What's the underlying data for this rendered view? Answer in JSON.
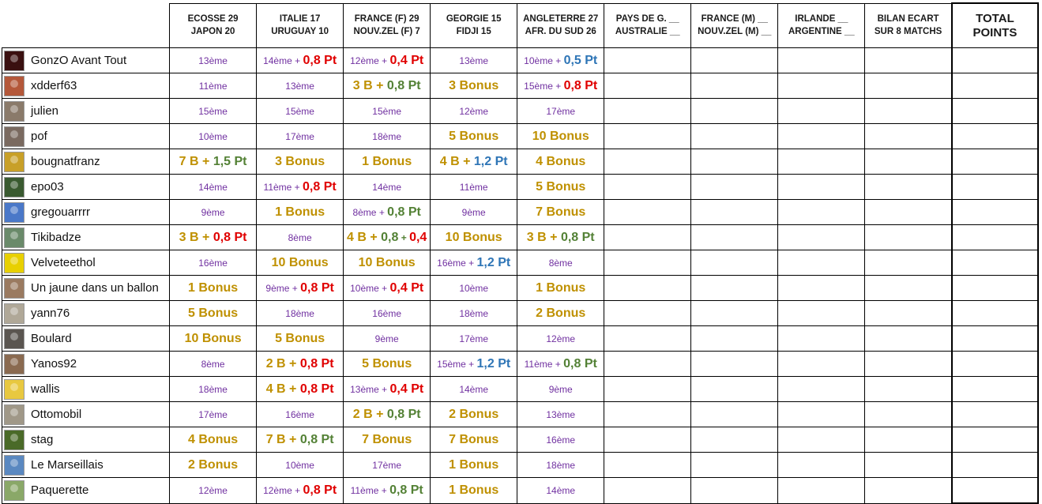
{
  "headers": [
    {
      "l1": "ECOSSE  29",
      "l2": "JAPON    20"
    },
    {
      "l1": "ITALIE      17",
      "l2": "URUGUAY 10"
    },
    {
      "l1": "FRANCE (F)  29",
      "l2": "NOUV.ZEL (F)  7"
    },
    {
      "l1": "GEORGIE  15",
      "l2": "FIDJI       15"
    },
    {
      "l1": "ANGLETERRE  27",
      "l2": "AFR. DU SUD  26"
    },
    {
      "l1": "PAYS DE G.  __",
      "l2": "AUSTRALIE  __"
    },
    {
      "l1": "FRANCE (M)    __",
      "l2": "NOUV.ZEL (M)  __"
    },
    {
      "l1": "IRLANDE    __",
      "l2": "ARGENTINE  __"
    },
    {
      "l1": "BILAN ECART",
      "l2": "SUR 8 MATCHS"
    },
    {
      "l1": "TOTAL",
      "l2": "POINTS"
    }
  ],
  "players": [
    {
      "name": "GonzO Avant Tout",
      "color": "#3a1010"
    },
    {
      "name": "xdderf63",
      "color": "#b4583a"
    },
    {
      "name": "julien",
      "color": "#8a7a6a"
    },
    {
      "name": "pof",
      "color": "#7a6a60"
    },
    {
      "name": "bougnatfranz",
      "color": "#c8a028"
    },
    {
      "name": "epo03",
      "color": "#3a5a30"
    },
    {
      "name": "gregouarrrr",
      "color": "#4a78c8"
    },
    {
      "name": "Tikibadze",
      "color": "#6a8a6a"
    },
    {
      "name": "Velveteethol",
      "color": "#e8d000"
    },
    {
      "name": "Un jaune dans un ballon",
      "color": "#9a7a60"
    },
    {
      "name": "yann76",
      "color": "#b0a898"
    },
    {
      "name": "Boulard",
      "color": "#5a5550"
    },
    {
      "name": "Yanos92",
      "color": "#8a6a50"
    },
    {
      "name": "wallis",
      "color": "#e8c840"
    },
    {
      "name": "Ottomobil",
      "color": "#a09888"
    },
    {
      "name": "stag",
      "color": "#4a6a28"
    },
    {
      "name": "Le Marseillais",
      "color": "#5a88c0"
    },
    {
      "name": "Paquerette",
      "color": "#8aa868"
    }
  ],
  "cells": [
    [
      [
        [
          "rank",
          "13ème"
        ]
      ],
      [
        [
          "rank",
          "14ème"
        ],
        [
          "rank",
          " + "
        ],
        [
          "big red",
          "0,8 Pt"
        ]
      ],
      [
        [
          "rank",
          "12ème"
        ],
        [
          "rank",
          " + "
        ],
        [
          "big red",
          "0,4 Pt"
        ]
      ],
      [
        [
          "rank",
          "13ème"
        ]
      ],
      [
        [
          "rank",
          "10ème"
        ],
        [
          "rank",
          " + "
        ],
        [
          "big blue",
          "0,5 Pt"
        ]
      ]
    ],
    [
      [
        [
          "rank",
          "11ème"
        ]
      ],
      [
        [
          "rank",
          "13ème"
        ]
      ],
      [
        [
          "big gold",
          "3 B + "
        ],
        [
          "big green",
          "0,8 Pt"
        ]
      ],
      [
        [
          "big gold",
          "3 Bonus"
        ]
      ],
      [
        [
          "rank",
          "15ème"
        ],
        [
          "rank",
          " + "
        ],
        [
          "big red",
          "0,8 Pt"
        ]
      ]
    ],
    [
      [
        [
          "rank",
          "15ème"
        ]
      ],
      [
        [
          "rank",
          "15ème"
        ]
      ],
      [
        [
          "rank",
          "15ème"
        ]
      ],
      [
        [
          "rank",
          "12ème"
        ]
      ],
      [
        [
          "rank",
          "17ème"
        ]
      ]
    ],
    [
      [
        [
          "rank",
          "10ème"
        ]
      ],
      [
        [
          "rank",
          "17ème"
        ]
      ],
      [
        [
          "rank",
          "18ème"
        ]
      ],
      [
        [
          "big gold",
          "5 Bonus"
        ]
      ],
      [
        [
          "big gold",
          "10 Bonus"
        ]
      ]
    ],
    [
      [
        [
          "big gold",
          "7 B + "
        ],
        [
          "big green",
          "1,5 Pt"
        ]
      ],
      [
        [
          "big gold",
          "3 Bonus"
        ]
      ],
      [
        [
          "big gold",
          "1 Bonus"
        ]
      ],
      [
        [
          "big gold",
          "4 B + "
        ],
        [
          "big blue",
          "1,2 Pt"
        ]
      ],
      [
        [
          "big gold",
          "4 Bonus"
        ]
      ]
    ],
    [
      [
        [
          "rank",
          "14ème"
        ]
      ],
      [
        [
          "rank",
          "11ème"
        ],
        [
          "rank",
          " + "
        ],
        [
          "big red",
          "0,8 Pt"
        ]
      ],
      [
        [
          "rank",
          "14ème"
        ]
      ],
      [
        [
          "rank",
          "11ème"
        ]
      ],
      [
        [
          "big gold",
          "5 Bonus"
        ]
      ]
    ],
    [
      [
        [
          "rank",
          "9ème"
        ]
      ],
      [
        [
          "big gold",
          "1 Bonus"
        ]
      ],
      [
        [
          "rank",
          "8ème"
        ],
        [
          "rank",
          " + "
        ],
        [
          "big green",
          "0,8 Pt"
        ]
      ],
      [
        [
          "rank",
          "9ème"
        ]
      ],
      [
        [
          "big gold",
          "7 Bonus"
        ]
      ]
    ],
    [
      [
        [
          "big gold",
          "3 B + "
        ],
        [
          "big red",
          "0,8 Pt"
        ]
      ],
      [
        [
          "rank",
          "8ème"
        ]
      ],
      [
        [
          "big gold",
          "4 B + "
        ],
        [
          "big green",
          "0,8"
        ],
        [
          "big green sm",
          " + "
        ],
        [
          "big red",
          "0,4"
        ]
      ],
      [
        [
          "big gold",
          "10 Bonus"
        ]
      ],
      [
        [
          "big gold",
          "3 B + "
        ],
        [
          "big green",
          "0,8 Pt"
        ]
      ]
    ],
    [
      [
        [
          "rank",
          "16ème"
        ]
      ],
      [
        [
          "big gold",
          "10 Bonus"
        ]
      ],
      [
        [
          "big gold",
          "10 Bonus"
        ]
      ],
      [
        [
          "rank",
          "16ème"
        ],
        [
          "rank",
          " + "
        ],
        [
          "big blue",
          "1,2 Pt"
        ]
      ],
      [
        [
          "rank",
          "8ème"
        ]
      ]
    ],
    [
      [
        [
          "big gold",
          "1 Bonus"
        ]
      ],
      [
        [
          "rank",
          "9ème"
        ],
        [
          "rank",
          " + "
        ],
        [
          "big red",
          "0,8 Pt"
        ]
      ],
      [
        [
          "rank",
          "10ème"
        ],
        [
          "rank",
          " + "
        ],
        [
          "big red",
          "0,4 Pt"
        ]
      ],
      [
        [
          "rank",
          "10ème"
        ]
      ],
      [
        [
          "big gold",
          "1 Bonus"
        ]
      ]
    ],
    [
      [
        [
          "big gold",
          "5 Bonus"
        ]
      ],
      [
        [
          "rank",
          "18ème"
        ]
      ],
      [
        [
          "rank",
          "16ème"
        ]
      ],
      [
        [
          "rank",
          "18ème"
        ]
      ],
      [
        [
          "big gold",
          "2 Bonus"
        ]
      ]
    ],
    [
      [
        [
          "big gold",
          "10 Bonus"
        ]
      ],
      [
        [
          "big gold",
          "5 Bonus"
        ]
      ],
      [
        [
          "rank",
          "9ème"
        ]
      ],
      [
        [
          "rank",
          "17ème"
        ]
      ],
      [
        [
          "rank",
          "12ème"
        ]
      ]
    ],
    [
      [
        [
          "rank",
          "8ème"
        ]
      ],
      [
        [
          "big gold",
          "2 B + "
        ],
        [
          "big red",
          "0,8 Pt"
        ]
      ],
      [
        [
          "big gold",
          "5 Bonus"
        ]
      ],
      [
        [
          "rank",
          "15ème"
        ],
        [
          "rank",
          " + "
        ],
        [
          "big blue",
          "1,2 Pt"
        ]
      ],
      [
        [
          "rank",
          "11ème"
        ],
        [
          "rank",
          " + "
        ],
        [
          "big green",
          "0,8 Pt"
        ]
      ]
    ],
    [
      [
        [
          "rank",
          "18ème"
        ]
      ],
      [
        [
          "big gold",
          "4 B + "
        ],
        [
          "big red",
          "0,8 Pt"
        ]
      ],
      [
        [
          "rank",
          "13ème"
        ],
        [
          "rank",
          " + "
        ],
        [
          "big red",
          "0,4 Pt"
        ]
      ],
      [
        [
          "rank",
          "14ème"
        ]
      ],
      [
        [
          "rank",
          "9ème"
        ]
      ]
    ],
    [
      [
        [
          "rank",
          "17ème"
        ]
      ],
      [
        [
          "rank",
          "16ème"
        ]
      ],
      [
        [
          "big gold",
          "2 B + "
        ],
        [
          "big green",
          "0,8 Pt"
        ]
      ],
      [
        [
          "big gold",
          "2 Bonus"
        ]
      ],
      [
        [
          "rank",
          "13ème"
        ]
      ]
    ],
    [
      [
        [
          "big gold",
          "4 Bonus"
        ]
      ],
      [
        [
          "big gold",
          "7 B + "
        ],
        [
          "big green",
          "0,8 Pt"
        ]
      ],
      [
        [
          "big gold",
          "7 Bonus"
        ]
      ],
      [
        [
          "big gold",
          "7 Bonus"
        ]
      ],
      [
        [
          "rank",
          "16ème"
        ]
      ]
    ],
    [
      [
        [
          "big gold",
          "2 Bonus"
        ]
      ],
      [
        [
          "rank",
          "10ème"
        ]
      ],
      [
        [
          "rank",
          "17ème"
        ]
      ],
      [
        [
          "big gold",
          "1 Bonus"
        ]
      ],
      [
        [
          "rank",
          "18ème"
        ]
      ]
    ],
    [
      [
        [
          "rank",
          "12ème"
        ]
      ],
      [
        [
          "rank",
          "12ème"
        ],
        [
          "rank",
          " + "
        ],
        [
          "big red",
          "0,8 Pt"
        ]
      ],
      [
        [
          "rank",
          "11ème"
        ],
        [
          "rank",
          " + "
        ],
        [
          "big green",
          "0,8 Pt"
        ]
      ],
      [
        [
          "big gold",
          "1 Bonus"
        ]
      ],
      [
        [
          "rank",
          "14ème"
        ]
      ]
    ]
  ]
}
